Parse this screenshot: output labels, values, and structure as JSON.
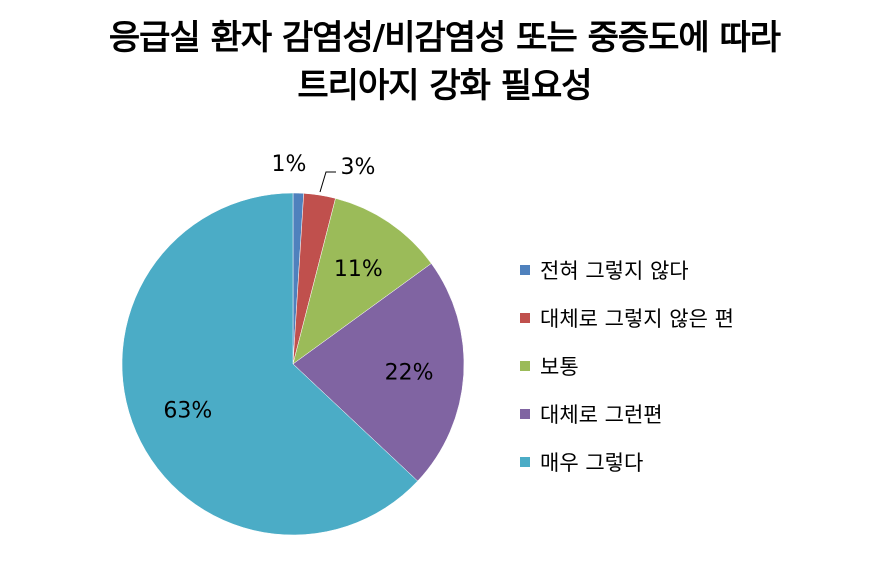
{
  "chart_data": {
    "type": "pie",
    "title_lines": [
      "응급실 환자 감염성/비감염성 또는 중증도에 따라",
      "트리아지 강화 필요성"
    ],
    "legend_position": "right",
    "slices": [
      {
        "name": "전혀 그렇지 않다",
        "value": 1,
        "label": "1%",
        "color": "#4F81BD"
      },
      {
        "name": "대체로 그렇지 않은 편",
        "value": 3,
        "label": "3%",
        "color": "#C0504D"
      },
      {
        "name": "보통",
        "value": 11,
        "label": "11%",
        "color": "#9BBB59"
      },
      {
        "name": "대체로 그런편",
        "value": 22,
        "label": "22%",
        "color": "#8064A2"
      },
      {
        "name": "매우 그렇다",
        "value": 63,
        "label": "63%",
        "color": "#4BACC6"
      }
    ]
  }
}
